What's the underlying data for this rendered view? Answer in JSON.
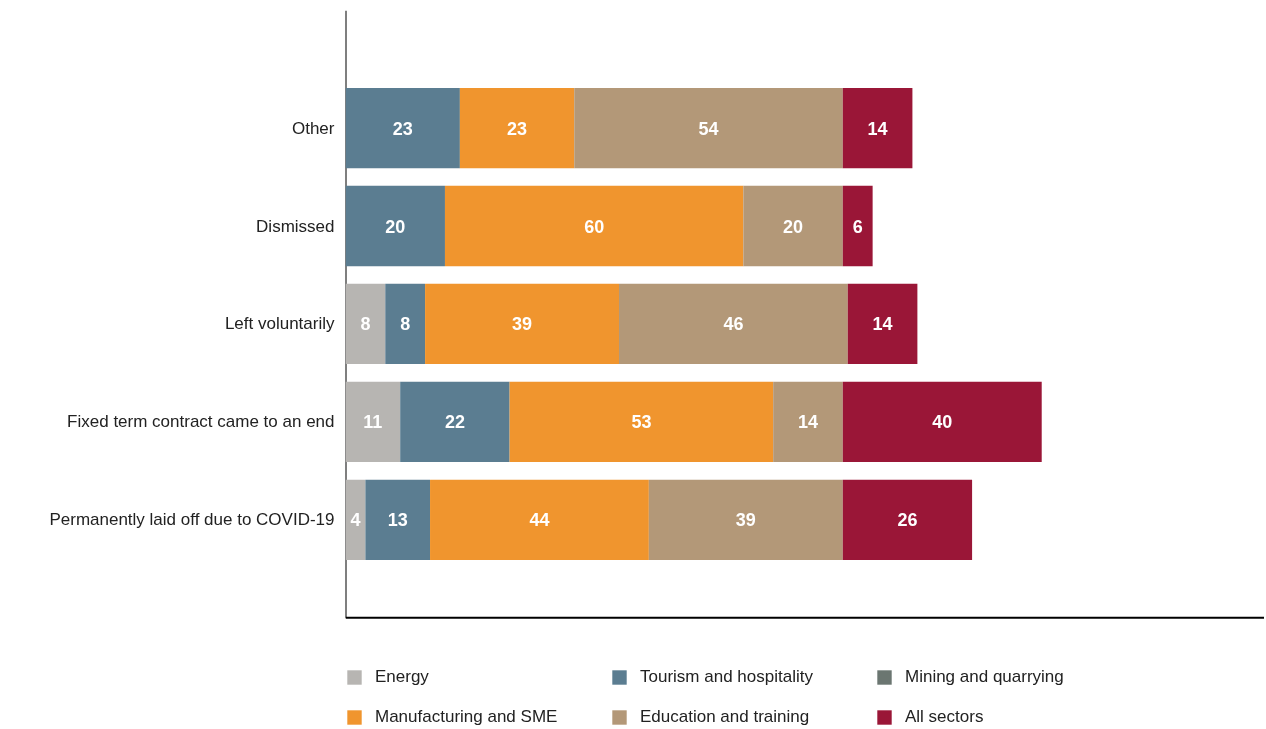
{
  "chart_data": {
    "type": "bar",
    "orientation": "horizontal",
    "stacked": true,
    "data_labels": true,
    "tick_labels": "y",
    "legend": "bottom",
    "categories": [
      "Other",
      "Dismissed",
      "Left voluntarily",
      "Fixed term contract came to an end",
      "Permanently laid off due to COVID-19"
    ],
    "series": [
      {
        "name": "Energy",
        "color": "#b7b5b2",
        "values": [
          null,
          null,
          8,
          11,
          4
        ]
      },
      {
        "name": "Tourism and hospitality",
        "color": "#5b7d91",
        "values": [
          23,
          20,
          8,
          22,
          13
        ]
      },
      {
        "name": "Mining and quarrying",
        "color": "#6b7671",
        "values": [
          null,
          null,
          null,
          null,
          null
        ]
      },
      {
        "name": "Manufacturing and SME",
        "color": "#f0952e",
        "values": [
          23,
          60,
          39,
          53,
          44
        ]
      },
      {
        "name": "Education and training",
        "color": "#b39878",
        "values": [
          54,
          20,
          46,
          14,
          39
        ]
      },
      {
        "name": "All sectors",
        "color": "#9a1637",
        "values": [
          14,
          6,
          14,
          40,
          26
        ]
      }
    ]
  }
}
